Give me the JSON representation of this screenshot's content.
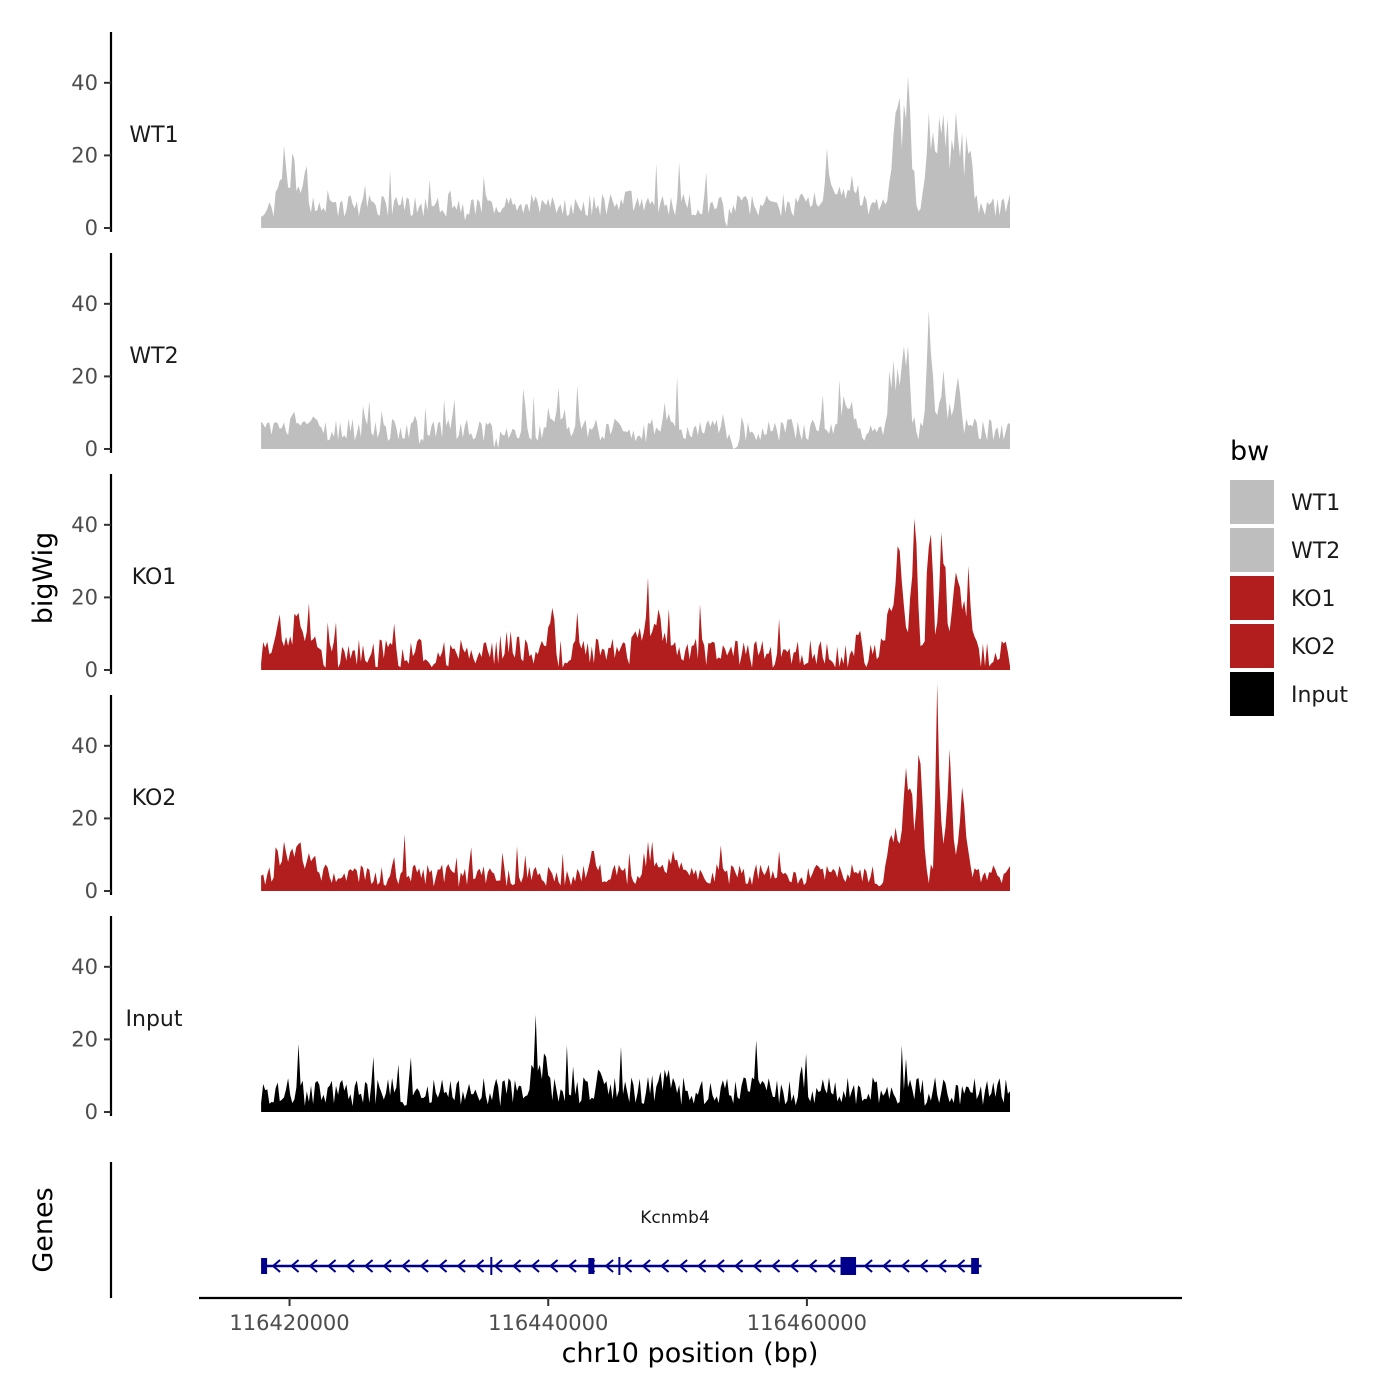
{
  "chart_data": {
    "type": "area",
    "title": "",
    "ylabel": "bigWig",
    "xlabel": "chr10 position (bp)",
    "genes_label": "Genes",
    "ylim": [
      0,
      54
    ],
    "y_ticks": [
      0,
      20,
      40
    ],
    "x_range": [
      116413000,
      116489000
    ],
    "x_ticks": [
      116420000,
      116440000,
      116460000
    ],
    "x_tick_labels": [
      "116420000",
      "116440000",
      "116460000"
    ],
    "signal_start": 116417800,
    "signal_end": 116475700,
    "legend": {
      "title": "bw",
      "entries": [
        {
          "label": "WT1",
          "color": "#bebebe"
        },
        {
          "label": "WT2",
          "color": "#bebebe"
        },
        {
          "label": "KO1",
          "color": "#b21e1e"
        },
        {
          "label": "KO2",
          "color": "#b21e1e"
        },
        {
          "label": "Input",
          "color": "#000000"
        }
      ]
    },
    "tracks": [
      {
        "name": "WT1",
        "color": "#bebebe",
        "baseline": 5,
        "noise": 4,
        "peaks": [
          {
            "pos": 116419500,
            "height": 12,
            "width": 350
          },
          {
            "pos": 116420300,
            "height": 11,
            "width": 300
          },
          {
            "pos": 116421200,
            "height": 8,
            "width": 300
          },
          {
            "pos": 116433700,
            "height": -4,
            "width": 400
          },
          {
            "pos": 116436200,
            "height": -4,
            "width": 350
          },
          {
            "pos": 116446000,
            "height": 4,
            "width": 600
          },
          {
            "pos": 116453800,
            "height": -4,
            "width": 350
          },
          {
            "pos": 116461700,
            "height": 5,
            "width": 1000
          },
          {
            "pos": 116463500,
            "height": 8,
            "width": 500
          },
          {
            "pos": 116467000,
            "height": 24,
            "width": 450
          },
          {
            "pos": 116467800,
            "height": 28,
            "width": 400
          },
          {
            "pos": 116469500,
            "height": 24,
            "width": 400
          },
          {
            "pos": 116470500,
            "height": 26,
            "width": 400
          },
          {
            "pos": 116471500,
            "height": 25,
            "width": 400
          },
          {
            "pos": 116472500,
            "height": 18,
            "width": 400
          }
        ]
      },
      {
        "name": "WT2",
        "color": "#bebebe",
        "baseline": 4,
        "noise": 4,
        "peaks": [
          {
            "pos": 116421000,
            "height": 4,
            "width": 900
          },
          {
            "pos": 116430500,
            "height": -4,
            "width": 500
          },
          {
            "pos": 116436000,
            "height": -4,
            "width": 350
          },
          {
            "pos": 116441000,
            "height": 3,
            "width": 800
          },
          {
            "pos": 116447000,
            "height": -4,
            "width": 400
          },
          {
            "pos": 116449300,
            "height": 5,
            "width": 600
          },
          {
            "pos": 116450000,
            "height": 12,
            "width": 90
          },
          {
            "pos": 116454500,
            "height": -4,
            "width": 400
          },
          {
            "pos": 116463000,
            "height": 7,
            "width": 700
          },
          {
            "pos": 116466800,
            "height": 18,
            "width": 500
          },
          {
            "pos": 116467700,
            "height": 23,
            "width": 350
          },
          {
            "pos": 116469500,
            "height": 32,
            "width": 300
          },
          {
            "pos": 116470500,
            "height": 16,
            "width": 400
          },
          {
            "pos": 116471600,
            "height": 12,
            "width": 400
          }
        ]
      },
      {
        "name": "KO1",
        "color": "#b21e1e",
        "baseline": 3,
        "noise": 5,
        "peaks": [
          {
            "pos": 116419300,
            "height": 8,
            "width": 400
          },
          {
            "pos": 116420500,
            "height": 10,
            "width": 400
          },
          {
            "pos": 116421400,
            "height": 11,
            "width": 350
          },
          {
            "pos": 116437000,
            "height": 3,
            "width": 800
          },
          {
            "pos": 116440300,
            "height": 8,
            "width": 250
          },
          {
            "pos": 116447500,
            "height": 9,
            "width": 700
          },
          {
            "pos": 116448600,
            "height": 8,
            "width": 600
          },
          {
            "pos": 116463900,
            "height": 9,
            "width": 250
          },
          {
            "pos": 116466500,
            "height": 14,
            "width": 450
          },
          {
            "pos": 116467200,
            "height": 28,
            "width": 350
          },
          {
            "pos": 116468300,
            "height": 38,
            "width": 300
          },
          {
            "pos": 116469500,
            "height": 30,
            "width": 350
          },
          {
            "pos": 116470500,
            "height": 28,
            "width": 350
          },
          {
            "pos": 116471600,
            "height": 27,
            "width": 400
          },
          {
            "pos": 116472400,
            "height": 15,
            "width": 400
          }
        ]
      },
      {
        "name": "KO2",
        "color": "#b21e1e",
        "baseline": 3,
        "noise": 4,
        "peaks": [
          {
            "pos": 116419500,
            "height": 8,
            "width": 500
          },
          {
            "pos": 116420700,
            "height": 9,
            "width": 500
          },
          {
            "pos": 116421800,
            "height": 6,
            "width": 400
          },
          {
            "pos": 116428000,
            "height": 7,
            "width": 120
          },
          {
            "pos": 116443500,
            "height": 7,
            "width": 250
          },
          {
            "pos": 116447800,
            "height": 7,
            "width": 600
          },
          {
            "pos": 116449800,
            "height": 5,
            "width": 500
          },
          {
            "pos": 116466800,
            "height": 12,
            "width": 600
          },
          {
            "pos": 116467800,
            "height": 32,
            "width": 400
          },
          {
            "pos": 116468700,
            "height": 30,
            "width": 350
          },
          {
            "pos": 116470100,
            "height": 44,
            "width": 200
          },
          {
            "pos": 116471000,
            "height": 24,
            "width": 400
          },
          {
            "pos": 116472000,
            "height": 18,
            "width": 400
          }
        ]
      },
      {
        "name": "Input",
        "color": "#000000",
        "baseline": 4,
        "noise": 5,
        "peaks": [
          {
            "pos": 116438900,
            "height": 7,
            "width": 400
          },
          {
            "pos": 116439700,
            "height": 7,
            "width": 300
          },
          {
            "pos": 116443900,
            "height": 6,
            "width": 200
          },
          {
            "pos": 116449000,
            "height": 3,
            "width": 800
          },
          {
            "pos": 116459500,
            "height": 7,
            "width": 200
          }
        ]
      }
    ],
    "gene": {
      "name": "Kcnmb4",
      "color": "#00008b",
      "start": 116417800,
      "end": 116473500,
      "strand": "-",
      "exons": [
        {
          "start": 116417800,
          "end": 116418100
        },
        {
          "start": 116443100,
          "end": 116443400
        },
        {
          "start": 116462600,
          "end": 116463800
        },
        {
          "start": 116472700,
          "end": 116473300
        }
      ],
      "small_ticks": [
        116435600,
        116445500
      ]
    }
  }
}
